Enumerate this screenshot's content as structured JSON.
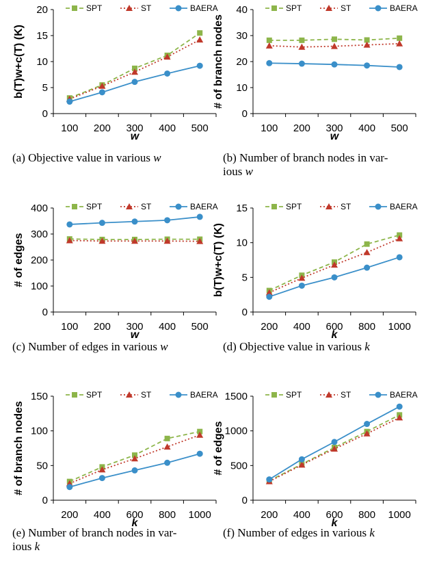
{
  "series_style": [
    {
      "name": "SPT",
      "color": "#8db54a",
      "dash": "6,4",
      "marker": "square"
    },
    {
      "name": "ST",
      "color": "#c0392b",
      "dash": "2,3",
      "marker": "triangle"
    },
    {
      "name": "BAERA",
      "color": "#3a8fc9",
      "dash": "",
      "marker": "circle"
    }
  ],
  "chart_data": [
    {
      "type": "line",
      "x": [
        "100",
        "200",
        "300",
        "400",
        "500"
      ],
      "xlabel": "w",
      "ylabel": "b(T)w+c(T)  (K)",
      "ylim": [
        0,
        20
      ],
      "yticks": [
        0,
        5,
        10,
        15,
        20
      ],
      "grid": false,
      "legend": "top",
      "series": [
        {
          "name": "SPT",
          "values": [
            3.0,
            5.5,
            8.7,
            11.2,
            15.5
          ]
        },
        {
          "name": "ST",
          "values": [
            2.8,
            5.3,
            8.0,
            10.9,
            14.2
          ]
        },
        {
          "name": "BAERA",
          "values": [
            2.3,
            4.1,
            6.1,
            7.7,
            9.2
          ]
        }
      ],
      "caption": {
        "prefix": "(a)",
        "text": "Objective value in various",
        "var": "w",
        "line2": ""
      }
    },
    {
      "type": "line",
      "x": [
        "100",
        "200",
        "300",
        "400",
        "500"
      ],
      "xlabel": "w",
      "ylabel": "# of branch nodes",
      "ylim": [
        0,
        40
      ],
      "yticks": [
        0,
        10,
        20,
        30,
        40
      ],
      "grid": false,
      "legend": "top",
      "series": [
        {
          "name": "SPT",
          "values": [
            28.2,
            28.2,
            28.6,
            28.3,
            29.0
          ]
        },
        {
          "name": "ST",
          "values": [
            26.1,
            25.6,
            25.9,
            26.4,
            26.9
          ]
        },
        {
          "name": "BAERA",
          "values": [
            19.4,
            19.2,
            18.9,
            18.5,
            17.9
          ]
        }
      ],
      "caption": {
        "prefix": "(b)",
        "text": "Number of branch nodes in var-",
        "var": "w",
        "line2": "ious"
      }
    },
    {
      "type": "line",
      "x": [
        "100",
        "200",
        "300",
        "400",
        "500"
      ],
      "xlabel": "w",
      "ylabel": "# of edges",
      "ylim": [
        0,
        400
      ],
      "yticks": [
        0,
        100,
        200,
        300,
        400
      ],
      "grid": false,
      "legend": "top",
      "series": [
        {
          "name": "SPT",
          "values": [
            281,
            279,
            279,
            280,
            280
          ]
        },
        {
          "name": "ST",
          "values": [
            275,
            273,
            273,
            273,
            272
          ]
        },
        {
          "name": "BAERA",
          "values": [
            337,
            343,
            348,
            353,
            366
          ]
        }
      ],
      "caption": {
        "prefix": "(c)",
        "text": "Number of edges in various",
        "var": "w",
        "line2": ""
      }
    },
    {
      "type": "line",
      "x": [
        "200",
        "400",
        "600",
        "800",
        "1000"
      ],
      "xlabel": "k",
      "ylabel": "b(T)w+c(T)  (K)",
      "ylim": [
        0,
        15
      ],
      "yticks": [
        0,
        5,
        10,
        15
      ],
      "grid": false,
      "legend": "top",
      "series": [
        {
          "name": "SPT",
          "values": [
            3.1,
            5.3,
            7.2,
            9.8,
            11.1
          ]
        },
        {
          "name": "ST",
          "values": [
            2.8,
            4.9,
            6.8,
            8.6,
            10.6
          ]
        },
        {
          "name": "BAERA",
          "values": [
            2.2,
            3.8,
            5.0,
            6.4,
            7.9
          ]
        }
      ],
      "caption": {
        "prefix": "(d)",
        "text": "Objective value in various",
        "var": "k",
        "line2": ""
      }
    },
    {
      "type": "line",
      "x": [
        "200",
        "400",
        "600",
        "800",
        "1000"
      ],
      "xlabel": "k",
      "ylabel": "# of branch nodes",
      "ylim": [
        0,
        150
      ],
      "yticks": [
        0,
        50,
        100,
        150
      ],
      "grid": false,
      "legend": "top",
      "series": [
        {
          "name": "SPT",
          "values": [
            27,
            48,
            65,
            89,
            99
          ]
        },
        {
          "name": "ST",
          "values": [
            24,
            44,
            60,
            77,
            94
          ]
        },
        {
          "name": "BAERA",
          "values": [
            19,
            32,
            43,
            54,
            67
          ]
        }
      ],
      "caption": {
        "prefix": "(e)",
        "text": "Number of branch nodes in var-",
        "var": "k",
        "line2": "ious"
      }
    },
    {
      "type": "line",
      "x": [
        "200",
        "400",
        "600",
        "800",
        "1000"
      ],
      "xlabel": "k",
      "ylabel": "# of edges",
      "ylim": [
        0,
        1500
      ],
      "yticks": [
        0,
        500,
        1000,
        1500
      ],
      "grid": false,
      "legend": "top",
      "series": [
        {
          "name": "SPT",
          "values": [
            280,
            520,
            760,
            990,
            1230
          ]
        },
        {
          "name": "ST",
          "values": [
            270,
            510,
            740,
            960,
            1190
          ]
        },
        {
          "name": "BAERA",
          "values": [
            300,
            590,
            840,
            1100,
            1350
          ]
        }
      ],
      "caption": {
        "prefix": "(f)",
        "text": "Number of edges in various",
        "var": "k",
        "line2": ""
      }
    }
  ]
}
